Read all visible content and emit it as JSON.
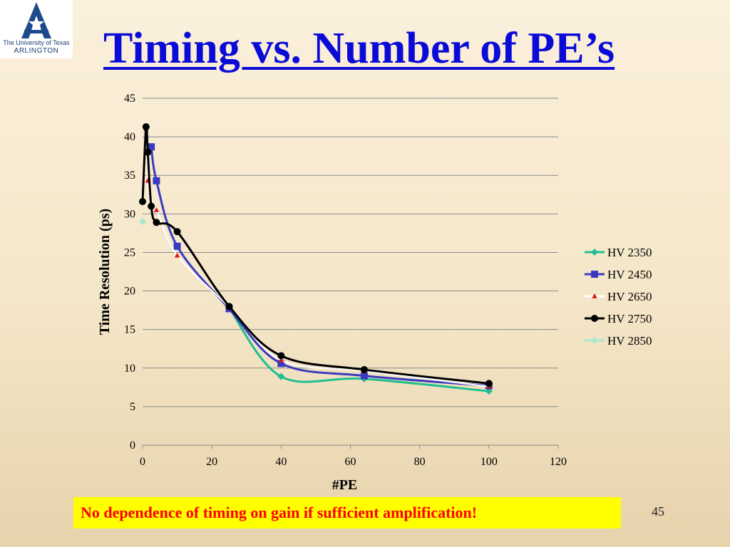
{
  "slide": {
    "title": "Timing vs. Number of PE’s",
    "logo": {
      "line1": "The University of Texas",
      "line2": "ARLINGTON"
    },
    "note": "No dependence of timing on gain if sufficient amplification!",
    "page_number": "45"
  },
  "chart_data": {
    "type": "line",
    "title": "",
    "xlabel": "#PE",
    "ylabel": "Time Resolution (ps)",
    "xlim": [
      0,
      120
    ],
    "ylim": [
      0,
      45
    ],
    "xticks": [
      0,
      20,
      40,
      60,
      80,
      100,
      120
    ],
    "yticks": [
      0,
      5,
      10,
      15,
      20,
      25,
      30,
      35,
      40,
      45
    ],
    "grid": "horizontal",
    "legend": "right",
    "series": [
      {
        "name": "HV 2350",
        "color": "#1fbf8f",
        "marker": "diamond",
        "x": [
          25,
          40,
          64,
          100
        ],
        "y": [
          17.8,
          8.9,
          8.6,
          7.0
        ]
      },
      {
        "name": "HV 2450",
        "color": "#3a3ac0",
        "marker": "square",
        "x": [
          2.5,
          4,
          10,
          25,
          40,
          64,
          100
        ],
        "y": [
          38.7,
          34.3,
          25.8,
          17.7,
          10.6,
          9.0,
          7.7
        ]
      },
      {
        "name": "HV 2650",
        "color": "#dd1111",
        "marker": "triangle",
        "x": [
          1,
          1.5,
          2.5,
          4,
          10,
          25,
          40,
          64,
          100
        ],
        "y": [
          41.0,
          34.3,
          31.0,
          30.5,
          24.6,
          17.9,
          11.0,
          9.6,
          7.6
        ]
      },
      {
        "name": "HV 2750",
        "color": "#000000",
        "marker": "circle",
        "x": [
          0,
          1,
          1.5,
          2.5,
          4,
          10,
          25,
          40,
          64,
          100
        ],
        "y": [
          31.6,
          41.3,
          38.0,
          31.0,
          28.9,
          27.7,
          18.0,
          11.6,
          9.8,
          8.0
        ]
      },
      {
        "name": "HV 2850",
        "color": "#a8e8d0",
        "marker": "diamond",
        "x": [
          0
        ],
        "y": [
          29.0
        ]
      }
    ]
  }
}
